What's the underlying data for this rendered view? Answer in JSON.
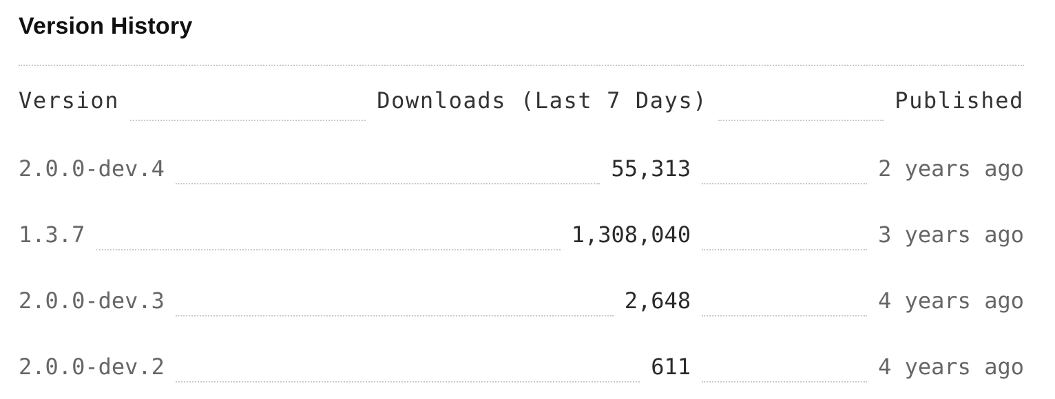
{
  "section": {
    "title": "Version History"
  },
  "table": {
    "headers": {
      "version": "Version",
      "downloads": "Downloads (Last 7 Days)",
      "published": "Published"
    },
    "rows": [
      {
        "version": "2.0.0-dev.4",
        "downloads": "55,313",
        "published": "2 years ago"
      },
      {
        "version": "1.3.7",
        "downloads": "1,308,040",
        "published": "3 years ago"
      },
      {
        "version": "2.0.0-dev.3",
        "downloads": "2,648",
        "published": "4 years ago"
      },
      {
        "version": "2.0.0-dev.2",
        "downloads": "611",
        "published": "4 years ago"
      }
    ]
  }
}
